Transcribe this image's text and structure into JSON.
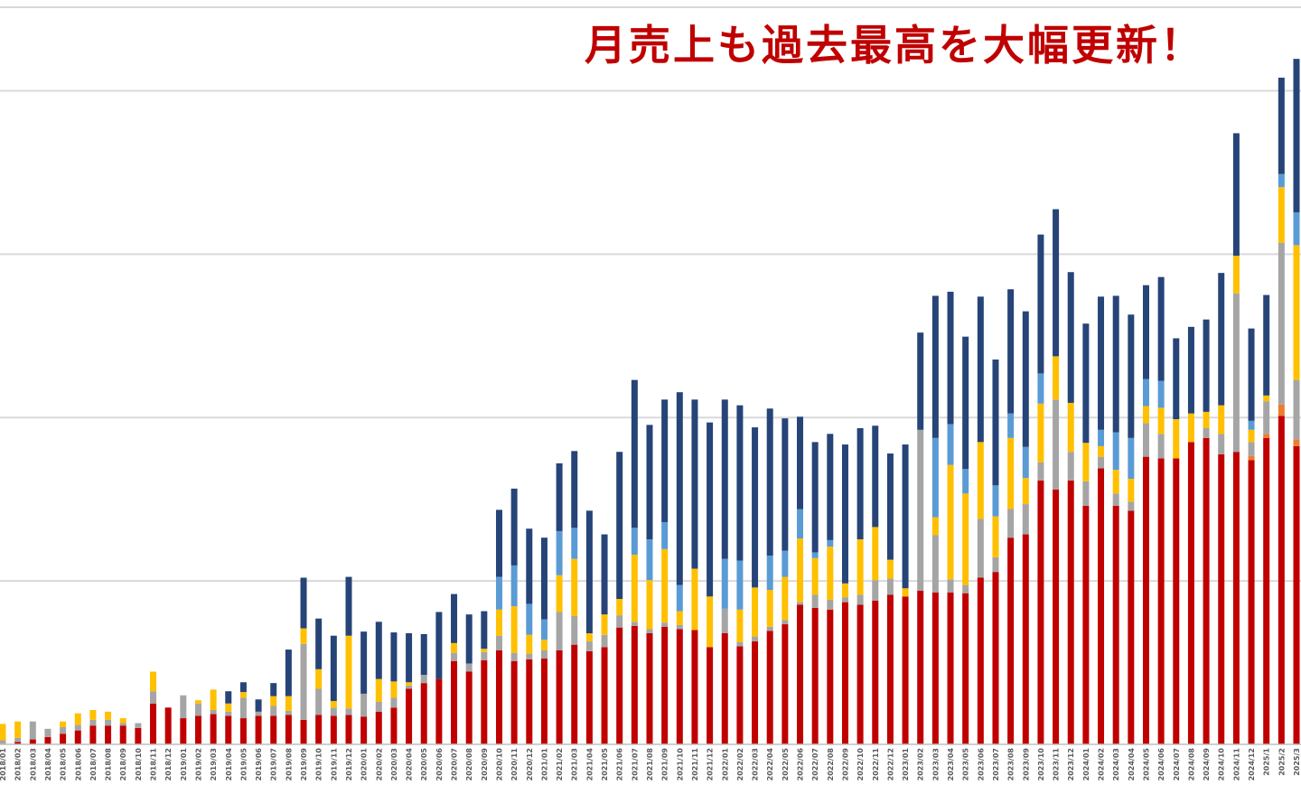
{
  "chart_data": {
    "type": "bar",
    "stacked": true,
    "title": "月売上も過去最高を大幅更新！",
    "xlabel": "",
    "ylabel": "",
    "ylim": [
      0,
      9
    ],
    "grid": true,
    "colors": [
      "#c00000",
      "#ed7d31",
      "#a5a5a5",
      "#ffc000",
      "#5b9bd5",
      "#264478"
    ],
    "categories": [
      "2018/01",
      "2018/02",
      "2018/03",
      "2018/04",
      "2018/05",
      "2018/06",
      "2018/07",
      "2018/08",
      "2018/09",
      "2018/10",
      "2018/11",
      "2018/12",
      "2019/01",
      "2019/02",
      "2019/03",
      "2019/04",
      "2019/05",
      "2019/06",
      "2019/07",
      "2019/08",
      "2019/09",
      "2019/10",
      "2019/11",
      "2019/12",
      "2020/01",
      "2020/02",
      "2020/03",
      "2020/04",
      "2020/05",
      "2020/06",
      "2020/07",
      "2020/08",
      "2020/09",
      "2020/10",
      "2020/11",
      "2020/12",
      "2021/01",
      "2021/02",
      "2021/03",
      "2021/04",
      "2021/05",
      "2021/06",
      "2021/07",
      "2021/08",
      "2021/09",
      "2021/10",
      "2021/11",
      "2021/12",
      "2022/01",
      "2022/02",
      "2022/03",
      "2022/04",
      "2022/05",
      "2022/06",
      "2022/07",
      "2022/08",
      "2022/09",
      "2022/10",
      "2022/11",
      "2022/12",
      "2023/01",
      "2023/02",
      "2023/03",
      "2023/04",
      "2023/05",
      "2023/06",
      "2023/07",
      "2023/08",
      "2023/09",
      "2023/10",
      "2023/11",
      "2023/12",
      "2024/01",
      "2024/02",
      "2024/03",
      "2024/04",
      "2024/05",
      "2024/06",
      "2024/07",
      "2024/08",
      "2024/09",
      "2024/10",
      "2024/11",
      "2024/12",
      "2025/1",
      "2025/2",
      "2025/3"
    ],
    "series": [
      {
        "name": "",
        "values": [
          0.0,
          0.03,
          0.06,
          0.09,
          0.13,
          0.17,
          0.23,
          0.23,
          0.23,
          0.2,
          0.5,
          0.45,
          0.32,
          0.35,
          0.37,
          0.35,
          0.32,
          0.35,
          0.35,
          0.36,
          0.3,
          0.36,
          0.35,
          0.36,
          0.34,
          0.4,
          0.45,
          0.68,
          0.75,
          0.8,
          1.02,
          0.89,
          1.03,
          1.15,
          1.02,
          1.04,
          1.05,
          1.15,
          1.22,
          1.14,
          1.19,
          1.43,
          1.45,
          1.36,
          1.44,
          1.41,
          1.4,
          1.19,
          1.36,
          1.2,
          1.26,
          1.39,
          1.47,
          1.71,
          1.67,
          1.65,
          1.74,
          1.71,
          1.76,
          1.83,
          1.81,
          1.88,
          1.86,
          1.86,
          1.85,
          2.04,
          2.11,
          2.53,
          2.57,
          3.23,
          3.12,
          3.23,
          2.92,
          3.38,
          2.92,
          2.86,
          3.52,
          3.5,
          3.5,
          3.7,
          3.75,
          3.55,
          3.58,
          3.48,
          3.75,
          4.02,
          3.65
        ]
      },
      {
        "name": "",
        "values": [
          0,
          0,
          0,
          0,
          0,
          0,
          0,
          0,
          0,
          0,
          0,
          0,
          0,
          0,
          0,
          0,
          0,
          0,
          0,
          0,
          0,
          0,
          0,
          0,
          0,
          0,
          0,
          0,
          0,
          0,
          0,
          0,
          0,
          0,
          0,
          0,
          0,
          0,
          0,
          0,
          0,
          0,
          0,
          0,
          0,
          0,
          0,
          0,
          0,
          0,
          0,
          0,
          0,
          0,
          0,
          0,
          0,
          0,
          0,
          0,
          0,
          0,
          0,
          0,
          0,
          0,
          0,
          0,
          0,
          0,
          0,
          0,
          0,
          0,
          0,
          0,
          0,
          0,
          0,
          0,
          0,
          0,
          0,
          0.05,
          0.05,
          0.14,
          0.08
        ]
      },
      {
        "name": "",
        "values": [
          0.05,
          0.05,
          0.22,
          0.1,
          0.08,
          0.07,
          0.07,
          0.07,
          0.03,
          0.06,
          0.15,
          0.0,
          0.28,
          0.15,
          0.05,
          0.05,
          0.25,
          0.05,
          0.12,
          0.05,
          0.93,
          0.32,
          0.1,
          0.08,
          0.28,
          0.12,
          0.12,
          0.04,
          0.1,
          0.0,
          0.1,
          0.1,
          0.1,
          0.18,
          0.1,
          0.07,
          0.1,
          0.47,
          0.35,
          0.12,
          0.15,
          0.15,
          0.05,
          0.05,
          0.05,
          0.05,
          0.0,
          0.0,
          0.3,
          0.05,
          0.06,
          0.05,
          0.05,
          0.03,
          0.16,
          0.12,
          0.06,
          0.12,
          0.25,
          0.2,
          0.0,
          1.97,
          0.7,
          0.16,
          0.1,
          0.72,
          0.18,
          0.35,
          0.37,
          0.22,
          1.1,
          0.35,
          0.3,
          0.14,
          0.15,
          0.11,
          0.41,
          0.3,
          0.0,
          0.0,
          0.12,
          0.25,
          1.94,
          0.17,
          0.4,
          1.98,
          0.73
        ]
      },
      {
        "name": "",
        "values": [
          0.2,
          0.2,
          0.0,
          0.0,
          0.07,
          0.14,
          0.12,
          0.1,
          0.06,
          0.0,
          0.24,
          0.0,
          0.0,
          0.04,
          0.25,
          0.1,
          0.07,
          0.0,
          0.12,
          0.18,
          0.19,
          0.24,
          0.08,
          0.89,
          0.0,
          0.28,
          0.2,
          0.04,
          0.0,
          0.0,
          0.12,
          0.0,
          0.04,
          0.32,
          0.57,
          0.23,
          0.13,
          0.45,
          0.7,
          0.1,
          0.25,
          0.2,
          0.82,
          0.6,
          0.9,
          0.17,
          0.75,
          0.62,
          0.0,
          0.4,
          0.6,
          0.45,
          0.53,
          0.78,
          0.45,
          0.65,
          0.17,
          0.68,
          0.65,
          0.23,
          0.1,
          0.0,
          0.22,
          1.4,
          1.12,
          0.94,
          0.5,
          0.87,
          0.32,
          0.72,
          0.53,
          0.6,
          0.47,
          0.13,
          0.29,
          0.28,
          0.21,
          0.32,
          0.48,
          0.35,
          0.2,
          0.35,
          0.46,
          0.15,
          0.07,
          0.68,
          1.65
        ]
      },
      {
        "name": "",
        "values": [
          0,
          0,
          0,
          0,
          0,
          0,
          0,
          0,
          0,
          0,
          0,
          0,
          0,
          0,
          0,
          0,
          0,
          0,
          0,
          0,
          0,
          0,
          0,
          0,
          0,
          0,
          0,
          0,
          0,
          0,
          0,
          0,
          0,
          0.4,
          0.5,
          0.38,
          0.25,
          0.54,
          0.38,
          0,
          0,
          0,
          0.33,
          0.5,
          0.33,
          0.32,
          0,
          0,
          0.61,
          0.6,
          0,
          0.42,
          0.32,
          0.36,
          0.07,
          0.08,
          0,
          0,
          0,
          0,
          0,
          0,
          0.97,
          0.5,
          0.3,
          0,
          0.38,
          0.3,
          0.38,
          0.37,
          0,
          0,
          0,
          0.2,
          0.46,
          0.5,
          0.33,
          0.33,
          0,
          0,
          0,
          0,
          0,
          0.11,
          0,
          0.16,
          0.4
        ]
      },
      {
        "name": "",
        "values": [
          0,
          0,
          0,
          0,
          0,
          0,
          0,
          0,
          0,
          0,
          0,
          0,
          0,
          0,
          0,
          0.15,
          0.12,
          0.15,
          0.16,
          0.57,
          0.62,
          0.62,
          0.8,
          0.72,
          0.76,
          0.7,
          0.6,
          0.6,
          0.5,
          0.82,
          0.6,
          0.6,
          0.46,
          0.82,
          0.94,
          0.92,
          1.0,
          0.83,
          0.94,
          1.5,
          0.98,
          1.8,
          1.81,
          1.4,
          1.5,
          2.36,
          2.07,
          2.13,
          1.95,
          1.9,
          1.96,
          1.8,
          1.62,
          1.13,
          1.35,
          1.3,
          1.7,
          1.36,
          1.24,
          1.3,
          1.76,
          1.19,
          1.74,
          1.62,
          1.62,
          1.78,
          1.54,
          1.52,
          1.66,
          1.7,
          1.8,
          1.6,
          1.46,
          1.63,
          1.67,
          1.51,
          1.15,
          1.27,
          0.99,
          1.06,
          1.13,
          1.62,
          1.5,
          1.13,
          1.23,
          1.18,
          1.88
        ]
      }
    ]
  }
}
